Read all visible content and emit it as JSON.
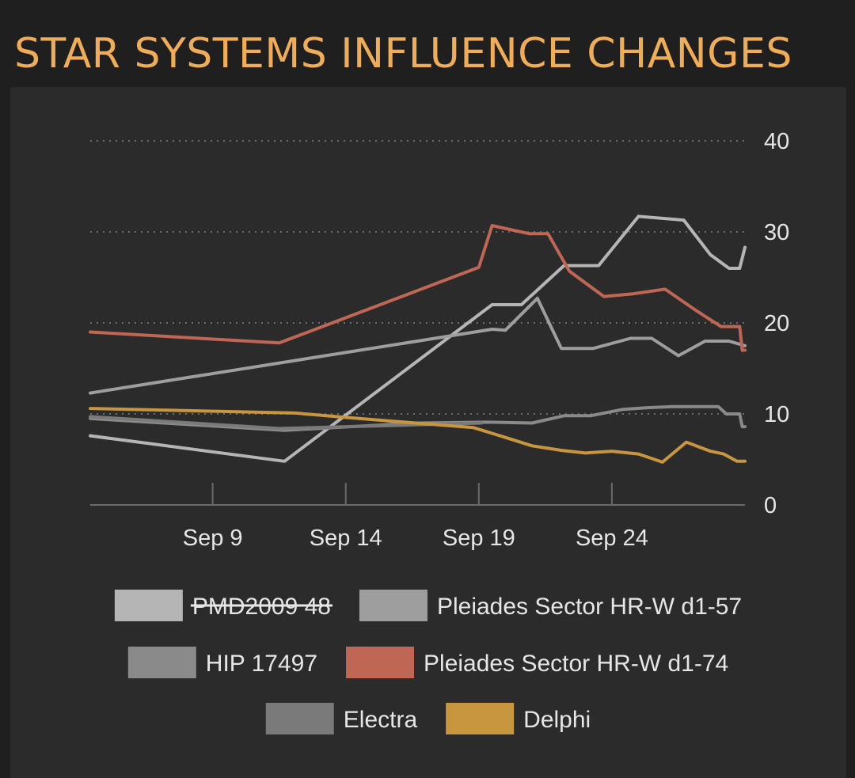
{
  "header": {
    "title": "STAR SYSTEMS INFLUENCE CHANGES"
  },
  "chart_data": {
    "type": "line",
    "title": "STAR SYSTEMS INFLUENCE CHANGES",
    "xlabel": "",
    "ylabel": "",
    "x_tick_labels": [
      "Sep 9",
      "Sep 14",
      "Sep 19",
      "Sep 24"
    ],
    "x_ticks": [
      9,
      14,
      19,
      24
    ],
    "xlim": [
      4.4,
      29
    ],
    "y_ticks": [
      0,
      10,
      20,
      30,
      40
    ],
    "ylim": [
      0,
      40
    ],
    "y_axis_position": "right",
    "grid": "horizontal dotted",
    "legend_position": "bottom",
    "series": [
      {
        "name": "PMD2009 48",
        "color": "#b5b5b5",
        "hidden": true,
        "points": [
          [
            4.4,
            7.6
          ],
          [
            11.7,
            4.8
          ],
          [
            19.5,
            22.0
          ],
          [
            20.6,
            22.0
          ],
          [
            22.2,
            26.3
          ],
          [
            23.5,
            26.3
          ],
          [
            25.0,
            31.7
          ],
          [
            26.7,
            31.3
          ],
          [
            27.7,
            27.5
          ],
          [
            28.4,
            26.0
          ],
          [
            28.8,
            26.0
          ],
          [
            29.0,
            28.3
          ]
        ]
      },
      {
        "name": "Pleiades Sector HR-W d1-57",
        "color": "#9e9e9e",
        "hidden": false,
        "points": [
          [
            4.4,
            12.3
          ],
          [
            19.5,
            19.3
          ],
          [
            20.0,
            19.2
          ],
          [
            21.2,
            22.7
          ],
          [
            22.1,
            17.2
          ],
          [
            23.3,
            17.2
          ],
          [
            24.7,
            18.3
          ],
          [
            25.5,
            18.3
          ],
          [
            26.5,
            16.4
          ],
          [
            27.5,
            18.0
          ],
          [
            28.4,
            18.0
          ],
          [
            29.0,
            17.5
          ]
        ]
      },
      {
        "name": "HIP 17497",
        "color": "#8a8a8a",
        "hidden": false,
        "points": [
          [
            4.4,
            9.5
          ],
          [
            11.7,
            8.2
          ],
          [
            16.7,
            9.0
          ],
          [
            19.3,
            9.1
          ],
          [
            21.0,
            9.0
          ],
          [
            22.2,
            9.8
          ],
          [
            23.2,
            9.8
          ],
          [
            24.4,
            10.5
          ],
          [
            25.4,
            10.7
          ],
          [
            26.3,
            10.8
          ],
          [
            27.2,
            10.8
          ],
          [
            28.0,
            10.8
          ],
          [
            28.3,
            10.0
          ],
          [
            28.8,
            10.0
          ],
          [
            28.9,
            8.6
          ],
          [
            29.0,
            8.6
          ]
        ]
      },
      {
        "name": "Pleiades Sector HR-W d1-74",
        "color": "#c06655",
        "hidden": false,
        "points": [
          [
            4.4,
            19.0
          ],
          [
            11.5,
            17.8
          ],
          [
            19.0,
            26.1
          ],
          [
            19.5,
            30.7
          ],
          [
            20.9,
            29.8
          ],
          [
            21.6,
            29.8
          ],
          [
            22.4,
            25.7
          ],
          [
            23.7,
            22.9
          ],
          [
            24.8,
            23.2
          ],
          [
            26.0,
            23.7
          ],
          [
            27.2,
            21.3
          ],
          [
            28.1,
            19.6
          ],
          [
            28.8,
            19.6
          ],
          [
            28.9,
            17.0
          ],
          [
            29.0,
            17.0
          ]
        ]
      },
      {
        "name": "Electra",
        "color": "#7a7a7a",
        "hidden": false,
        "points": [
          [
            4.4,
            9.7
          ],
          [
            11.5,
            8.4
          ],
          [
            16.6,
            8.8
          ],
          [
            19.1,
            9.0
          ]
        ]
      },
      {
        "name": "Delphi",
        "color": "#c99640",
        "hidden": false,
        "points": [
          [
            4.4,
            10.6
          ],
          [
            12.1,
            10.1
          ],
          [
            14.5,
            9.5
          ],
          [
            18.8,
            8.5
          ],
          [
            19.8,
            7.6
          ],
          [
            21.0,
            6.5
          ],
          [
            22.1,
            6.0
          ],
          [
            23.0,
            5.7
          ],
          [
            24.0,
            5.9
          ],
          [
            25.0,
            5.6
          ],
          [
            25.9,
            4.7
          ],
          [
            26.8,
            6.9
          ],
          [
            27.7,
            5.9
          ],
          [
            28.2,
            5.6
          ],
          [
            28.7,
            4.8
          ],
          [
            29.0,
            4.8
          ]
        ]
      }
    ]
  }
}
